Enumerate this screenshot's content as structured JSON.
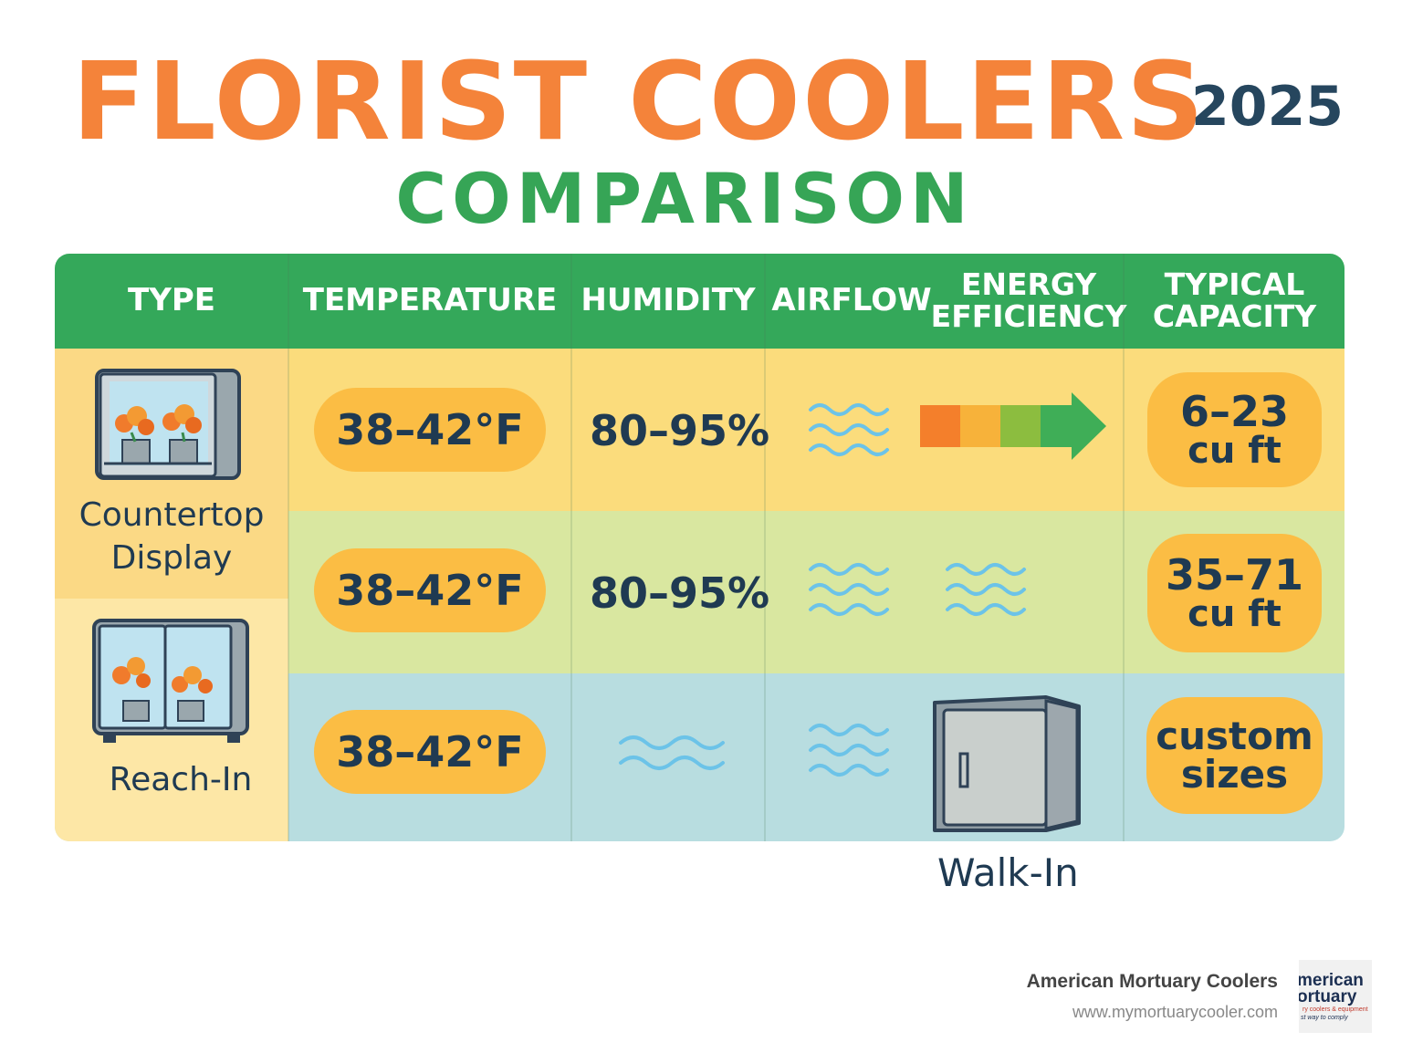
{
  "title": "FLORIST COOLERS",
  "year": "2025",
  "subtitle": "COMPARISON",
  "headers": {
    "type": "TYPE",
    "temperature": "TEMPERATURE",
    "humidity": "HUMIDITY",
    "airflow": "AIRFLOW",
    "energy_line1": "ENERGY",
    "energy_line2": "EFFICIENCY",
    "capacity_line1": "TYPICAL",
    "capacity_line2": "CAPACITY"
  },
  "rows": [
    {
      "type_line1": "Countertop",
      "type_line2": "Display",
      "temperature": "38–42°F",
      "humidity": "80–95%",
      "capacity_line1": "6–23",
      "capacity_line2": "cu ft"
    },
    {
      "type": "Reach-In",
      "temperature": "38–42°F",
      "humidity": "80–95%",
      "capacity_line1": "35–71",
      "capacity_line2": "cu ft"
    },
    {
      "type": "Walk-In",
      "temperature": "38–42°F",
      "capacity_line1": "custom",
      "capacity_line2": "sizes"
    }
  ],
  "colors": {
    "title": "#f4833a",
    "subtitle": "#36a556",
    "header": "#34a85a",
    "pill": "#fbbd44",
    "text": "#1f3a52",
    "wave": "#6cc3e8"
  },
  "footer": {
    "brand": "American Mortuary Coolers",
    "url": "www.mymortuarycooler.com",
    "logo_line1": "merican",
    "logo_line2": "ortuary",
    "logo_line3": "ry coolers & equipment",
    "logo_line4": "st way to comply"
  }
}
